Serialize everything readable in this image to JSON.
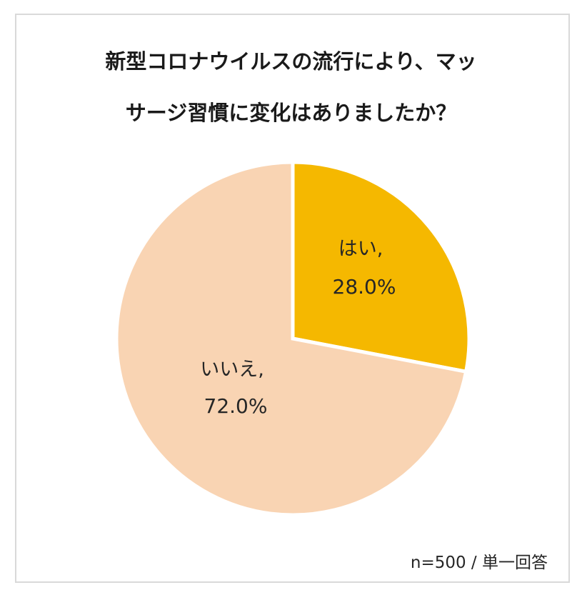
{
  "chart_data": {
    "type": "pie",
    "title_lines": [
      "新型コロナウイルスの流行により、マッ",
      "サージ習慣に変化はありましたか？"
    ],
    "slices": [
      {
        "label": "はい,",
        "value": 28.0,
        "value_label": "28.0%",
        "color": "#f5b800"
      },
      {
        "label": "いいえ,",
        "value": 72.0,
        "value_label": "72.0%",
        "color": "#f9d4b3"
      }
    ],
    "start_angle_deg": 0,
    "direction": "clockwise",
    "legend": "none",
    "note": "n=500 / 単一回答"
  }
}
